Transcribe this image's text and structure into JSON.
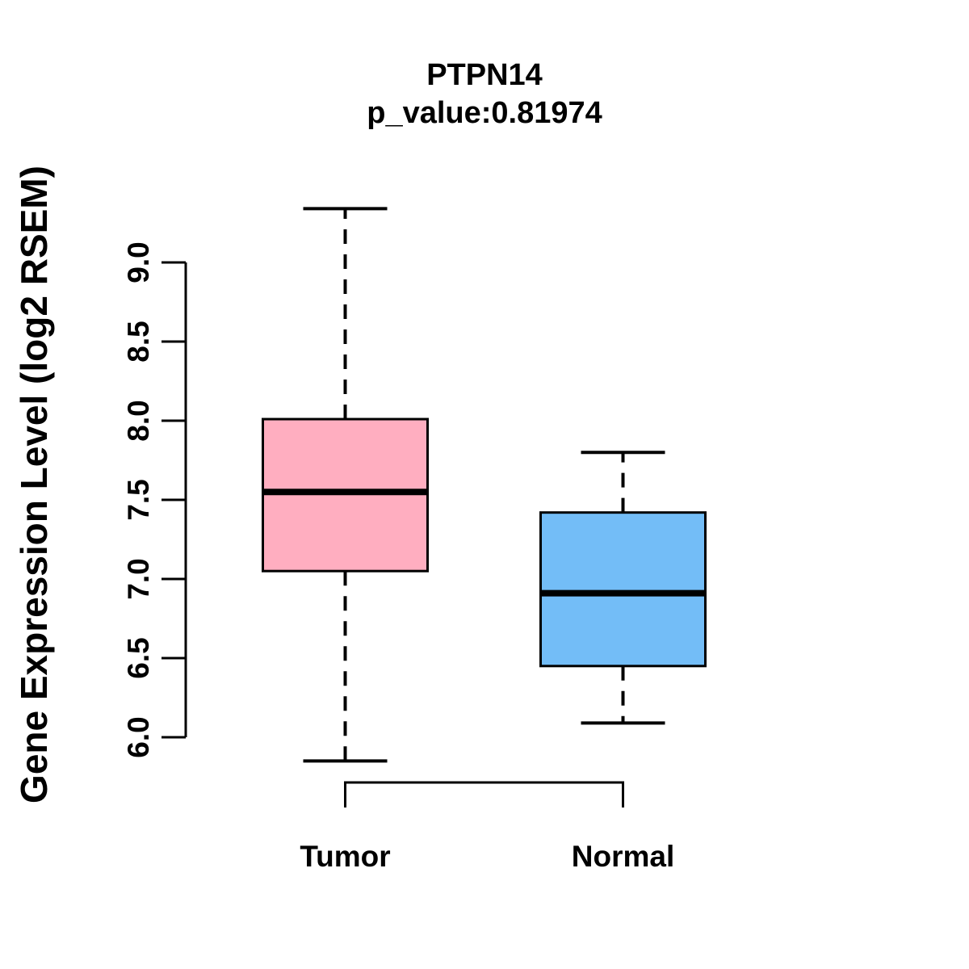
{
  "title": {
    "line1": "PTPN14",
    "line2": "p_value:0.81974"
  },
  "y_axis": {
    "label": "Gene Expression Level (log2 RSEM)"
  },
  "colors": {
    "tumor_fill": "#FFAEC0",
    "normal_fill": "#73BDF7",
    "stroke": "#000000",
    "background": "#FFFFFF"
  },
  "chart_data": {
    "type": "boxplot",
    "title": "PTPN14",
    "subtitle": "p_value:0.81974",
    "gene": "PTPN14",
    "p_value": 0.81974,
    "ylabel": "Gene Expression Level (log2 RSEM)",
    "ylim": [
      6.0,
      9.0
    ],
    "yticks": [
      6.0,
      6.5,
      7.0,
      7.5,
      8.0,
      8.5,
      9.0
    ],
    "grid": false,
    "legend": "none",
    "categories": [
      "Tumor",
      "Normal"
    ],
    "series": [
      {
        "name": "Tumor",
        "fill": "#FFAEC0",
        "whisker_low": 5.85,
        "q1": 7.05,
        "median": 7.55,
        "q3": 8.01,
        "whisker_high": 9.34
      },
      {
        "name": "Normal",
        "fill": "#73BDF7",
        "whisker_low": 6.09,
        "q1": 6.45,
        "median": 6.91,
        "q3": 7.42,
        "whisker_high": 7.8
      }
    ]
  }
}
